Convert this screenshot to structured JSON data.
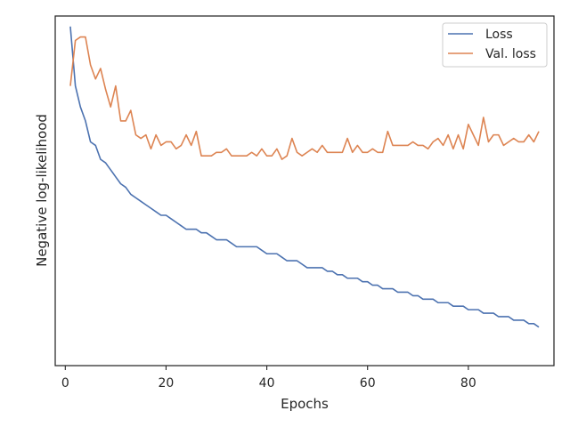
{
  "chart_data": {
    "type": "line",
    "title": "",
    "xlabel": "Epochs",
    "ylabel": "Negative log-likelihood",
    "xlim": [
      -2,
      97
    ],
    "ylim": [
      0.0,
      1.0
    ],
    "x_ticks": [
      0,
      20,
      40,
      60,
      80
    ],
    "y_ticks_shown": false,
    "grid": false,
    "legend_position": "top-right",
    "colors": {
      "Loss": "#4c72b0",
      "Val. loss": "#dd8452",
      "axes": "#262626"
    },
    "series": [
      {
        "name": "Loss",
        "x": [
          1,
          2,
          3,
          4,
          5,
          6,
          7,
          8,
          9,
          10,
          11,
          12,
          13,
          14,
          15,
          16,
          17,
          18,
          19,
          20,
          21,
          22,
          23,
          24,
          25,
          26,
          27,
          28,
          29,
          30,
          31,
          32,
          33,
          34,
          35,
          36,
          37,
          38,
          39,
          40,
          41,
          42,
          43,
          44,
          45,
          46,
          47,
          48,
          49,
          50,
          51,
          52,
          53,
          54,
          55,
          56,
          57,
          58,
          59,
          60,
          61,
          62,
          63,
          64,
          65,
          66,
          67,
          68,
          69,
          70,
          71,
          72,
          73,
          74,
          75,
          76,
          77,
          78,
          79,
          80,
          81,
          82,
          83,
          84,
          85,
          86,
          87,
          88,
          89,
          90,
          91,
          92,
          93,
          94
        ],
        "values": [
          0.97,
          0.8,
          0.74,
          0.7,
          0.64,
          0.63,
          0.59,
          0.58,
          0.56,
          0.54,
          0.52,
          0.51,
          0.49,
          0.48,
          0.47,
          0.46,
          0.45,
          0.44,
          0.43,
          0.43,
          0.42,
          0.41,
          0.4,
          0.39,
          0.39,
          0.39,
          0.38,
          0.38,
          0.37,
          0.36,
          0.36,
          0.36,
          0.35,
          0.34,
          0.34,
          0.34,
          0.34,
          0.34,
          0.33,
          0.32,
          0.32,
          0.32,
          0.31,
          0.3,
          0.3,
          0.3,
          0.29,
          0.28,
          0.28,
          0.28,
          0.28,
          0.27,
          0.27,
          0.26,
          0.26,
          0.25,
          0.25,
          0.25,
          0.24,
          0.24,
          0.23,
          0.23,
          0.22,
          0.22,
          0.22,
          0.21,
          0.21,
          0.21,
          0.2,
          0.2,
          0.19,
          0.19,
          0.19,
          0.18,
          0.18,
          0.18,
          0.17,
          0.17,
          0.17,
          0.16,
          0.16,
          0.16,
          0.15,
          0.15,
          0.15,
          0.14,
          0.14,
          0.14,
          0.13,
          0.13,
          0.13,
          0.12,
          0.12,
          0.11
        ]
      },
      {
        "name": "Val. loss",
        "x": [
          1,
          2,
          3,
          4,
          5,
          6,
          7,
          8,
          9,
          10,
          11,
          12,
          13,
          14,
          15,
          16,
          17,
          18,
          19,
          20,
          21,
          22,
          23,
          24,
          25,
          26,
          27,
          28,
          29,
          30,
          31,
          32,
          33,
          34,
          35,
          36,
          37,
          38,
          39,
          40,
          41,
          42,
          43,
          44,
          45,
          46,
          47,
          48,
          49,
          50,
          51,
          52,
          53,
          54,
          55,
          56,
          57,
          58,
          59,
          60,
          61,
          62,
          63,
          64,
          65,
          66,
          67,
          68,
          69,
          70,
          71,
          72,
          73,
          74,
          75,
          76,
          77,
          78,
          79,
          80,
          81,
          82,
          83,
          84,
          85,
          86,
          87,
          88,
          89,
          90,
          91,
          92,
          93,
          94
        ],
        "values": [
          0.8,
          0.93,
          0.94,
          0.94,
          0.86,
          0.82,
          0.85,
          0.79,
          0.74,
          0.8,
          0.7,
          0.7,
          0.73,
          0.66,
          0.65,
          0.66,
          0.62,
          0.66,
          0.63,
          0.64,
          0.64,
          0.62,
          0.63,
          0.66,
          0.63,
          0.67,
          0.6,
          0.6,
          0.6,
          0.61,
          0.61,
          0.62,
          0.6,
          0.6,
          0.6,
          0.6,
          0.61,
          0.6,
          0.62,
          0.6,
          0.6,
          0.62,
          0.59,
          0.6,
          0.65,
          0.61,
          0.6,
          0.61,
          0.62,
          0.61,
          0.63,
          0.61,
          0.61,
          0.61,
          0.61,
          0.65,
          0.61,
          0.63,
          0.61,
          0.61,
          0.62,
          0.61,
          0.61,
          0.67,
          0.63,
          0.63,
          0.63,
          0.63,
          0.64,
          0.63,
          0.63,
          0.62,
          0.64,
          0.65,
          0.63,
          0.66,
          0.62,
          0.66,
          0.62,
          0.69,
          0.66,
          0.63,
          0.71,
          0.64,
          0.66,
          0.66,
          0.63,
          0.64,
          0.65,
          0.64,
          0.64,
          0.66,
          0.64,
          0.67
        ]
      }
    ]
  }
}
